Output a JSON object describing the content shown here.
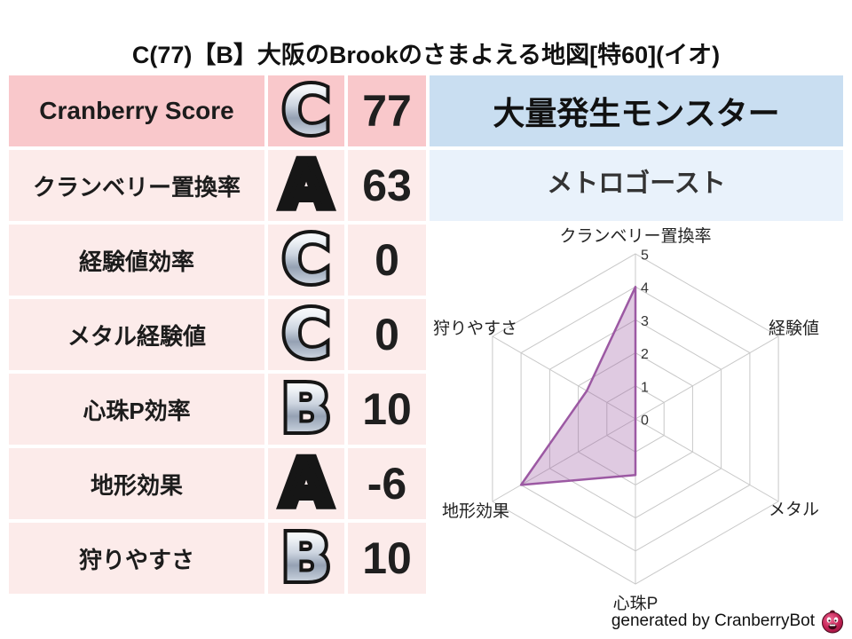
{
  "title": "C(77)【B】大阪のBrookのさまよえる地図[特60](イオ)",
  "score_table": {
    "columns": [
      "metric",
      "grade",
      "value"
    ],
    "rows": [
      {
        "label": "Cranberry Score",
        "grade": "C",
        "grade_style": "silver",
        "value": "77"
      },
      {
        "label": "クランベリー置換率",
        "grade": "A",
        "grade_style": "gold",
        "value": "63"
      },
      {
        "label": "経験値効率",
        "grade": "C",
        "grade_style": "silver",
        "value": "0"
      },
      {
        "label": "メタル経験値",
        "grade": "C",
        "grade_style": "silver",
        "value": "0"
      },
      {
        "label": "心珠P効率",
        "grade": "B",
        "grade_style": "silver",
        "value": "10"
      },
      {
        "label": "地形効果",
        "grade": "A",
        "grade_style": "gold",
        "value": "-6"
      },
      {
        "label": "狩りやすさ",
        "grade": "B",
        "grade_style": "silver",
        "value": "10"
      }
    ]
  },
  "monster_panel": {
    "header": "大量発生モンスター",
    "name": "メトロゴースト"
  },
  "chart_data": {
    "type": "radar",
    "categories": [
      "クランベリー置換率",
      "経験値",
      "メタル",
      "心珠P",
      "地形効果",
      "狩りやすさ"
    ],
    "values": [
      4,
      0,
      0,
      1.7,
      4,
      1.7
    ],
    "ticks": [
      0,
      1,
      2,
      3,
      4,
      5
    ],
    "axis_min": 0,
    "axis_max": 5,
    "grid": true,
    "legend": "none",
    "fill_color": "rgba(155,89,163,0.32)",
    "stroke_color": "#9c59a3",
    "grid_color": "#c8c8c8",
    "tick_color": "#333333",
    "label_color": "#222222"
  },
  "footer": {
    "credit": "generated by CranberryBot"
  },
  "colors": {
    "header_pink": "#f9c8cb",
    "row_pink": "#fcebea",
    "header_blue": "#c9def1",
    "row_blue": "#e9f2fb",
    "grade_gold": "#fbc81d",
    "grade_silver": "#cdd5e0"
  }
}
